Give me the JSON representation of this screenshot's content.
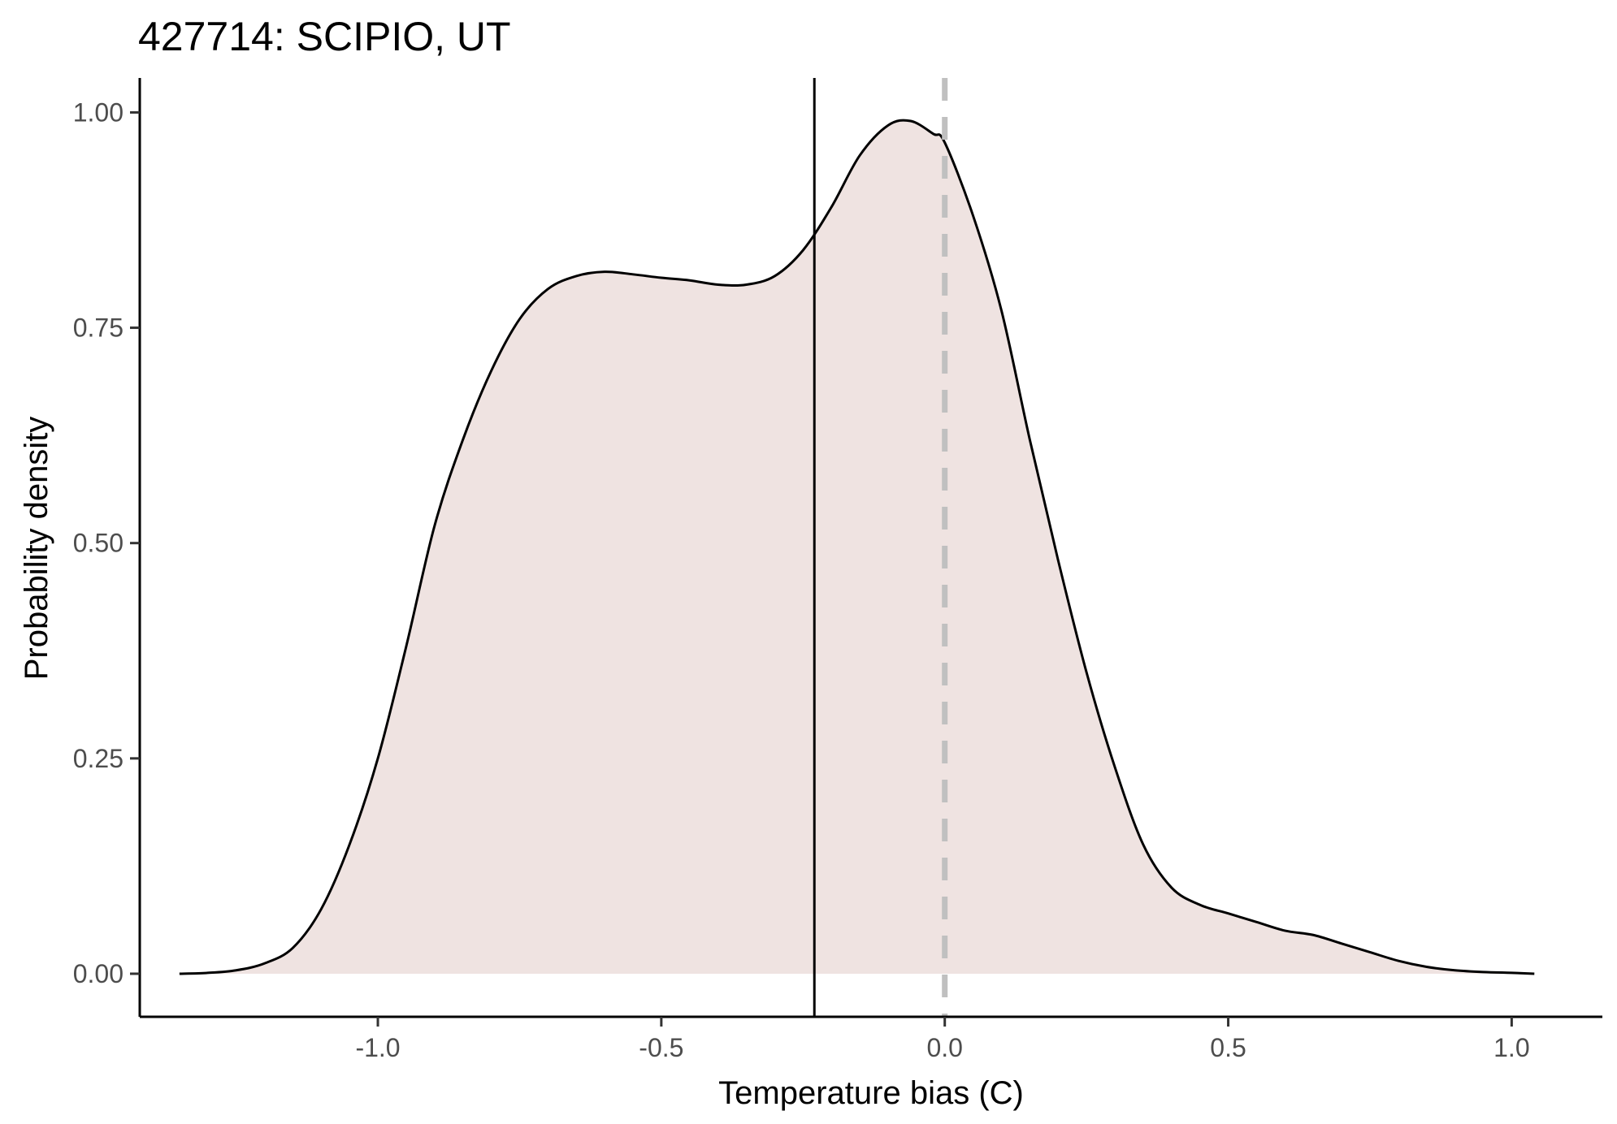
{
  "chart_data": {
    "type": "area",
    "title": "427714: SCIPIO, UT",
    "xlabel": "Temperature bias (C)",
    "ylabel": "Probability density",
    "xlim": [
      -1.42,
      1.16
    ],
    "ylim": [
      -0.05,
      1.04
    ],
    "x_ticks": [
      -1.0,
      -0.5,
      0.0,
      0.5,
      1.0
    ],
    "x_tick_labels": [
      "-1.0",
      "-0.5",
      "0.0",
      "0.5",
      "1.0"
    ],
    "y_ticks": [
      0.0,
      0.25,
      0.5,
      0.75,
      1.0
    ],
    "y_tick_labels": [
      "0.00",
      "0.25",
      "0.50",
      "0.75",
      "1.00"
    ],
    "grid": false,
    "legend": "none",
    "series": [
      {
        "x": [
          -1.35,
          -1.3,
          -1.25,
          -1.2,
          -1.15,
          -1.1,
          -1.05,
          -1.0,
          -0.95,
          -0.9,
          -0.85,
          -0.8,
          -0.75,
          -0.7,
          -0.65,
          -0.6,
          -0.55,
          -0.5,
          -0.45,
          -0.4,
          -0.35,
          -0.3,
          -0.25,
          -0.2,
          -0.15,
          -0.1,
          -0.06,
          -0.02,
          0.0,
          0.05,
          0.1,
          0.15,
          0.2,
          0.25,
          0.3,
          0.35,
          0.4,
          0.45,
          0.5,
          0.55,
          0.6,
          0.65,
          0.7,
          0.75,
          0.8,
          0.85,
          0.9,
          0.95,
          1.0,
          1.04
        ],
        "y": [
          0.0,
          0.001,
          0.004,
          0.012,
          0.03,
          0.075,
          0.15,
          0.25,
          0.38,
          0.52,
          0.62,
          0.7,
          0.76,
          0.795,
          0.81,
          0.815,
          0.812,
          0.808,
          0.805,
          0.8,
          0.8,
          0.81,
          0.84,
          0.89,
          0.95,
          0.985,
          0.99,
          0.975,
          0.965,
          0.88,
          0.77,
          0.62,
          0.48,
          0.35,
          0.24,
          0.15,
          0.1,
          0.08,
          0.07,
          0.06,
          0.05,
          0.045,
          0.035,
          0.025,
          0.015,
          0.008,
          0.004,
          0.002,
          0.001,
          0.0
        ],
        "fill": "#efe3e1",
        "line": "#000000"
      }
    ],
    "reference_lines": [
      {
        "axis": "x",
        "value": -0.23,
        "style": "solid",
        "color": "#000000"
      },
      {
        "axis": "x",
        "value": 0.0,
        "style": "dashed",
        "color": "#c0c0c0"
      }
    ]
  }
}
